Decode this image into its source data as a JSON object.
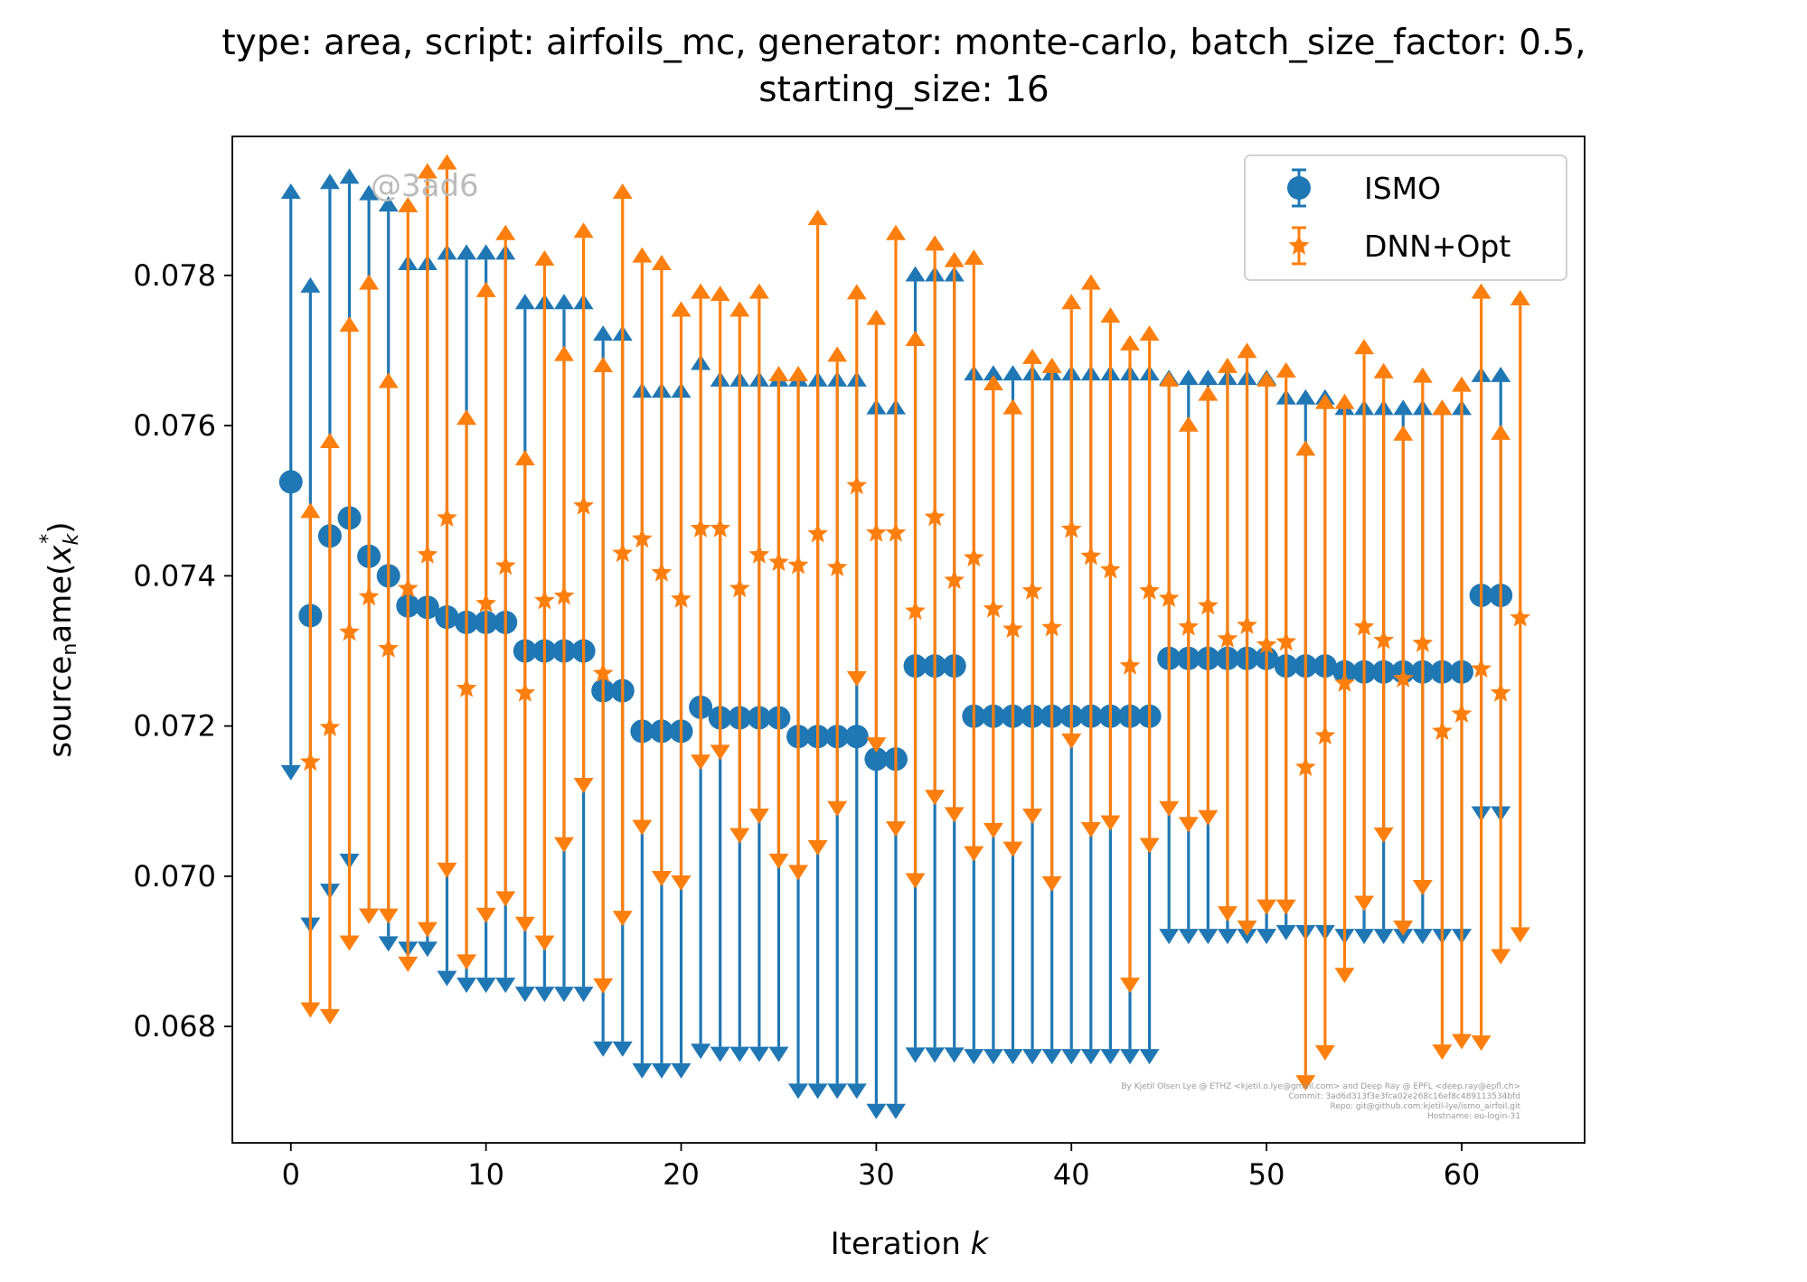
{
  "chart_data": {
    "type": "scatter",
    "title_line1": "type: area, script: airfoils_mc, generator: monte-carlo, batch_size_factor: 0.5,",
    "title_line2": "starting_size: 16",
    "xlabel_prefix": "Iteration ",
    "xlabel_var": "k",
    "ylabel": "source",
    "ylabel_sub": "n",
    "ylabel_rest": "ame(",
    "ylabel_var": "x",
    "ylabel_var_sub": "k",
    "ylabel_var_sup": "*",
    "ylabel_close": ")",
    "xlim": [
      -3,
      66.3
    ],
    "ylim": [
      0.06645,
      0.07985
    ],
    "xticks": [
      0,
      10,
      20,
      30,
      40,
      50,
      60
    ],
    "yticks": [
      0.068,
      0.07,
      0.072,
      0.074,
      0.076,
      0.078
    ],
    "ytick_labels": [
      "0.068",
      "0.070",
      "0.072",
      "0.074",
      "0.076",
      "0.078"
    ],
    "legend_position": "top-right",
    "watermark": "@3ad6",
    "footnote": [
      "By Kjetil Olsen Lye @ ETHZ <kjetil.o.lye@gmail.com> and Deep Ray @ EPFL <deep.ray@epfl.ch>",
      "Commit: 3ad6d313f3e3fca02e268c16ef8c489113534bfd",
      "Repo: git@github.com:kjetil-lye/ismo_airfoil.git",
      "Hostname: eu-login-31"
    ],
    "series": [
      {
        "name": "ISMO",
        "color": "#1f77b4",
        "marker": "circle",
        "x": [
          0,
          1,
          2,
          3,
          4,
          5,
          6,
          7,
          8,
          9,
          10,
          11,
          12,
          13,
          14,
          15,
          16,
          17,
          18,
          19,
          20,
          21,
          22,
          23,
          24,
          25,
          26,
          27,
          28,
          29,
          30,
          31,
          32,
          33,
          34,
          35,
          36,
          37,
          38,
          39,
          40,
          41,
          42,
          43,
          44,
          45,
          46,
          47,
          48,
          49,
          50,
          51,
          52,
          53,
          54,
          55,
          56,
          57,
          58,
          59,
          60,
          61,
          62
        ],
        "y": [
          0.07525,
          0.07347,
          0.07453,
          0.07477,
          0.07426,
          0.074,
          0.0736,
          0.07358,
          0.07345,
          0.07338,
          0.07338,
          0.07338,
          0.073,
          0.073,
          0.073,
          0.073,
          0.07247,
          0.07247,
          0.07193,
          0.07193,
          0.07193,
          0.07225,
          0.07211,
          0.07211,
          0.07211,
          0.07211,
          0.07186,
          0.07186,
          0.07186,
          0.07186,
          0.07156,
          0.07156,
          0.0728,
          0.0728,
          0.0728,
          0.07213,
          0.07213,
          0.07213,
          0.07213,
          0.07213,
          0.07213,
          0.07213,
          0.07213,
          0.07213,
          0.07213,
          0.0729,
          0.0729,
          0.0729,
          0.0729,
          0.0729,
          0.0729,
          0.0728,
          0.0728,
          0.0728,
          0.07272,
          0.07272,
          0.07272,
          0.07272,
          0.07272,
          0.07272,
          0.07272,
          0.07374,
          0.07374
        ],
        "upper": [
          0.07902,
          0.07777,
          0.07915,
          0.07922,
          0.079,
          0.07885,
          0.07807,
          0.07807,
          0.07821,
          0.07821,
          0.07821,
          0.07821,
          0.07755,
          0.07755,
          0.07755,
          0.07755,
          0.07713,
          0.07713,
          0.07637,
          0.07637,
          0.07637,
          0.07674,
          0.07652,
          0.07652,
          0.07652,
          0.07652,
          0.07652,
          0.07652,
          0.07652,
          0.07652,
          0.07615,
          0.07615,
          0.07792,
          0.07792,
          0.07792,
          0.0766,
          0.0766,
          0.0766,
          0.0766,
          0.0766,
          0.0766,
          0.0766,
          0.0766,
          0.0766,
          0.0766,
          0.07654,
          0.07654,
          0.07654,
          0.07654,
          0.07654,
          0.07654,
          0.07628,
          0.07628,
          0.07628,
          0.07614,
          0.07614,
          0.07614,
          0.07614,
          0.07614,
          0.07614,
          0.07614,
          0.07658,
          0.07658
        ],
        "lower": [
          0.07148,
          0.06945,
          0.0699,
          0.0703,
          0.06957,
          0.0692,
          0.06913,
          0.06913,
          0.06874,
          0.06865,
          0.06865,
          0.06865,
          0.06853,
          0.06853,
          0.06853,
          0.06853,
          0.0678,
          0.0678,
          0.06751,
          0.06751,
          0.06751,
          0.06777,
          0.06773,
          0.06773,
          0.06773,
          0.06773,
          0.06724,
          0.06724,
          0.06724,
          0.06724,
          0.06697,
          0.06697,
          0.06772,
          0.06772,
          0.06772,
          0.0677,
          0.0677,
          0.0677,
          0.0677,
          0.0677,
          0.0677,
          0.0677,
          0.0677,
          0.0677,
          0.0677,
          0.0693,
          0.0693,
          0.0693,
          0.0693,
          0.0693,
          0.0693,
          0.06935,
          0.06935,
          0.06935,
          0.0693,
          0.0693,
          0.0693,
          0.0693,
          0.0693,
          0.0693,
          0.0693,
          0.07093,
          0.07093
        ]
      },
      {
        "name": "DNN+Opt",
        "color": "#ff7f0e",
        "marker": "star",
        "x": [
          1,
          2,
          3,
          4,
          5,
          6,
          7,
          8,
          9,
          10,
          11,
          12,
          13,
          14,
          15,
          16,
          17,
          18,
          19,
          20,
          21,
          22,
          23,
          24,
          25,
          26,
          27,
          28,
          29,
          30,
          31,
          32,
          33,
          34,
          35,
          36,
          37,
          38,
          39,
          40,
          41,
          42,
          43,
          44,
          45,
          46,
          47,
          48,
          49,
          50,
          51,
          52,
          53,
          54,
          55,
          56,
          57,
          58,
          59,
          60,
          61,
          62,
          63
        ],
        "y": [
          0.07152,
          0.07198,
          0.07325,
          0.07372,
          0.07303,
          0.07383,
          0.07428,
          0.07477,
          0.0725,
          0.07363,
          0.07413,
          0.07244,
          0.07367,
          0.07373,
          0.07493,
          0.0727,
          0.0743,
          0.07449,
          0.07404,
          0.07369,
          0.07463,
          0.07463,
          0.07383,
          0.07428,
          0.07418,
          0.07414,
          0.07456,
          0.07411,
          0.0752,
          0.07457,
          0.07457,
          0.07353,
          0.07478,
          0.07394,
          0.07424,
          0.07356,
          0.07329,
          0.0738,
          0.07331,
          0.07462,
          0.07426,
          0.07408,
          0.0728,
          0.0738,
          0.0737,
          0.07332,
          0.0736,
          0.07316,
          0.07334,
          0.07308,
          0.07312,
          0.07145,
          0.07187,
          0.07257,
          0.07332,
          0.07314,
          0.07263,
          0.0731,
          0.07193,
          0.07216,
          0.07276,
          0.07244,
          0.07344
        ],
        "upper": [
          0.07477,
          0.0757,
          0.07725,
          0.07781,
          0.0765,
          0.07884,
          0.07929,
          0.07941,
          0.07601,
          0.07771,
          0.07847,
          0.07547,
          0.07813,
          0.07686,
          0.0785,
          0.07671,
          0.07902,
          0.07817,
          0.07807,
          0.07745,
          0.07769,
          0.07766,
          0.07745,
          0.07769,
          0.07659,
          0.07659,
          0.07867,
          0.07685,
          0.07768,
          0.07734,
          0.07847,
          0.07706,
          0.07833,
          0.07811,
          0.07814,
          0.07647,
          0.07615,
          0.07682,
          0.0767,
          0.07755,
          0.07781,
          0.07737,
          0.077,
          0.07713,
          0.07652,
          0.07592,
          0.07633,
          0.0767,
          0.0769,
          0.07652,
          0.07664,
          0.0756,
          0.07622,
          0.07622,
          0.07695,
          0.07663,
          0.0758,
          0.07657,
          0.07614,
          0.07645,
          0.07769,
          0.07581,
          0.0776
        ],
        "lower": [
          0.06832,
          0.06823,
          0.06921,
          0.06957,
          0.06957,
          0.06893,
          0.06939,
          0.07018,
          0.06896,
          0.06958,
          0.0698,
          0.06946,
          0.06921,
          0.07052,
          0.07131,
          0.06864,
          0.06954,
          0.07075,
          0.07007,
          0.07001,
          0.07162,
          0.07175,
          0.07064,
          0.0709,
          0.0703,
          0.07015,
          0.07048,
          0.071,
          0.07273,
          0.07185,
          0.07073,
          0.07004,
          0.07115,
          0.07092,
          0.0704,
          0.07071,
          0.07046,
          0.0709,
          0.07,
          0.0719,
          0.07072,
          0.07081,
          0.06865,
          0.07051,
          0.071,
          0.07079,
          0.07088,
          0.0696,
          0.06941,
          0.06969,
          0.06969,
          0.06735,
          0.06775,
          0.06878,
          0.06974,
          0.07065,
          0.06941,
          0.06995,
          0.06776,
          0.0679,
          0.06788,
          0.06903,
          0.06932
        ]
      }
    ]
  }
}
